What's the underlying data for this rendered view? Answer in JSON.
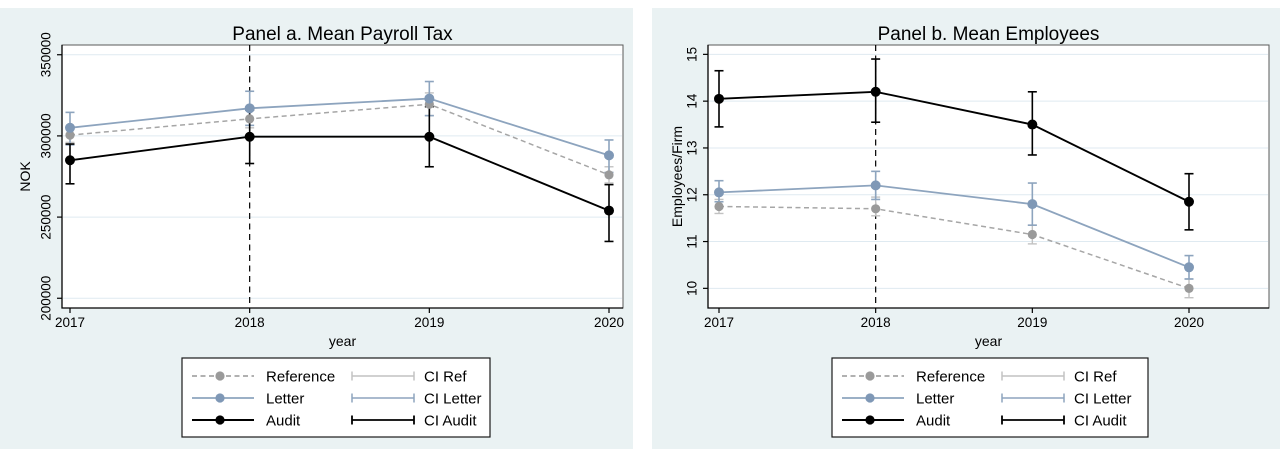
{
  "figure": {
    "background": "#eaf2f3",
    "plot_background": "#ffffff",
    "grid_color": "#dfeaf1",
    "border_color": "#5a5a5a",
    "axis_color": "#000000",
    "title_color": "#2b4a6b",
    "tick_label_color": "#000000",
    "legend_background": "#ffffff",
    "legend_border_color": "#1a1a1a"
  },
  "chart_data": [
    {
      "id": "panel-a",
      "type": "line",
      "title": "Panel a. Mean Payroll Tax",
      "xlabel": "year",
      "ylabel": "NOK",
      "categories": [
        "2017",
        "2018",
        "2019",
        "2020"
      ],
      "ylim": [
        194000,
        356000
      ],
      "yticks": [
        200000,
        250000,
        300000,
        350000
      ],
      "ytick_labels": [
        "200000",
        "250000",
        "300000",
        "350000"
      ],
      "grid": true,
      "reference_vline_x": "2018",
      "legend_position": "bottom-center",
      "series": [
        {
          "name": "Reference",
          "ci_name": "CI Ref",
          "line_style": "dashed",
          "color": "#a6a6a6",
          "marker_color": "#9a9a9a",
          "ci_color": "#c2c2c2",
          "values": [
            300500,
            310500,
            319500,
            276000
          ],
          "ci_low": [
            296000,
            305000,
            312500,
            271000
          ],
          "ci_high": [
            305000,
            316000,
            326500,
            281000
          ]
        },
        {
          "name": "Letter",
          "ci_name": "CI Letter",
          "line_style": "solid",
          "color": "#8da4be",
          "marker_color": "#7f98b6",
          "ci_color": "#8da4be",
          "values": [
            305000,
            317000,
            323000,
            288000
          ],
          "ci_low": [
            294500,
            306500,
            312500,
            277500
          ],
          "ci_high": [
            314500,
            327500,
            333500,
            297500
          ]
        },
        {
          "name": "Audit",
          "ci_name": "CI Audit",
          "line_style": "solid",
          "color": "#000000",
          "marker_color": "#000000",
          "ci_color": "#000000",
          "values": [
            285000,
            299500,
            299500,
            254000
          ],
          "ci_low": [
            270500,
            283000,
            281000,
            235000
          ],
          "ci_high": [
            295000,
            316000,
            318000,
            270000
          ]
        }
      ]
    },
    {
      "id": "panel-b",
      "type": "line",
      "title": "Panel b. Mean Employees",
      "xlabel": "year",
      "ylabel": "Employees/Firm",
      "categories": [
        "2017",
        "2018",
        "2019",
        "2020"
      ],
      "ylim": [
        9.58,
        15.2
      ],
      "yticks": [
        10,
        11,
        12,
        13,
        14,
        15
      ],
      "ytick_labels": [
        "10",
        "11",
        "12",
        "13",
        "14",
        "15"
      ],
      "grid": true,
      "reference_vline_x": "2018",
      "legend_position": "bottom-center",
      "series": [
        {
          "name": "Reference",
          "ci_name": "CI Ref",
          "line_style": "dashed",
          "color": "#a6a6a6",
          "marker_color": "#9a9a9a",
          "ci_color": "#c2c2c2",
          "values": [
            11.75,
            11.7,
            11.15,
            10.0
          ],
          "ci_low": [
            11.6,
            11.55,
            10.95,
            9.8
          ],
          "ci_high": [
            11.9,
            11.95,
            11.35,
            10.2
          ]
        },
        {
          "name": "Letter",
          "ci_name": "CI Letter",
          "line_style": "solid",
          "color": "#8da4be",
          "marker_color": "#7f98b6",
          "ci_color": "#8da4be",
          "values": [
            12.05,
            12.2,
            11.8,
            10.45
          ],
          "ci_low": [
            11.85,
            11.9,
            11.35,
            10.2
          ],
          "ci_high": [
            12.3,
            12.5,
            12.25,
            10.7
          ]
        },
        {
          "name": "Audit",
          "ci_name": "CI Audit",
          "line_style": "solid",
          "color": "#000000",
          "marker_color": "#000000",
          "ci_color": "#000000",
          "values": [
            14.05,
            14.2,
            13.5,
            11.85
          ],
          "ci_low": [
            13.45,
            13.55,
            12.85,
            11.25
          ],
          "ci_high": [
            14.65,
            14.9,
            14.2,
            12.45
          ]
        }
      ]
    }
  ]
}
